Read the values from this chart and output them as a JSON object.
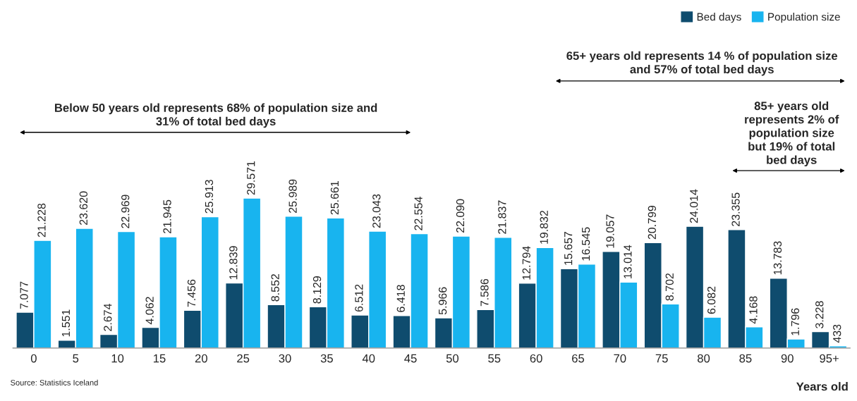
{
  "chart_data": {
    "type": "bar",
    "xlabel": "Years old",
    "categories": [
      "0",
      "5",
      "10",
      "15",
      "20",
      "25",
      "30",
      "35",
      "40",
      "45",
      "50",
      "55",
      "60",
      "65",
      "70",
      "75",
      "80",
      "85",
      "90",
      "95+"
    ],
    "series": [
      {
        "name": "Bed days",
        "color": "#0f4c6e",
        "values": [
          7077,
          1551,
          2674,
          4062,
          7456,
          12839,
          8552,
          8129,
          6512,
          6418,
          5966,
          7586,
          12794,
          15657,
          19057,
          20799,
          24014,
          23355,
          13783,
          3228
        ],
        "value_labels": [
          "7.077",
          "1.551",
          "2.674",
          "4.062",
          "7.456",
          "12.839",
          "8.552",
          "8.129",
          "6.512",
          "6.418",
          "5.966",
          "7.586",
          "12.794",
          "15.657",
          "19.057",
          "20.799",
          "24.014",
          "23.355",
          "13.783",
          "3.228"
        ]
      },
      {
        "name": "Population size",
        "color": "#18b4ef",
        "values": [
          21228,
          23620,
          22969,
          21945,
          25913,
          29571,
          25989,
          25661,
          23043,
          22554,
          22090,
          21837,
          19832,
          16545,
          13014,
          8702,
          6082,
          4168,
          1796,
          433
        ],
        "value_labels": [
          "21.228",
          "23.620",
          "22.969",
          "21.945",
          "25.913",
          "29.571",
          "25.989",
          "25.661",
          "23.043",
          "22.554",
          "22.090",
          "21.837",
          "19.832",
          "16.545",
          "13.014",
          "8.702",
          "6.082",
          "4.168",
          "1.796",
          "433"
        ]
      }
    ],
    "annotations": [
      "Below 50 years old represents 68% of population size and 31% of total bed days",
      "65+ years old represents 14 % of population size and 57% of total bed days",
      "85+ years old represents 2% of population size but 19% of total bed days",
      "Source: Statistics Iceland"
    ],
    "legend": "top right",
    "grid": false
  }
}
